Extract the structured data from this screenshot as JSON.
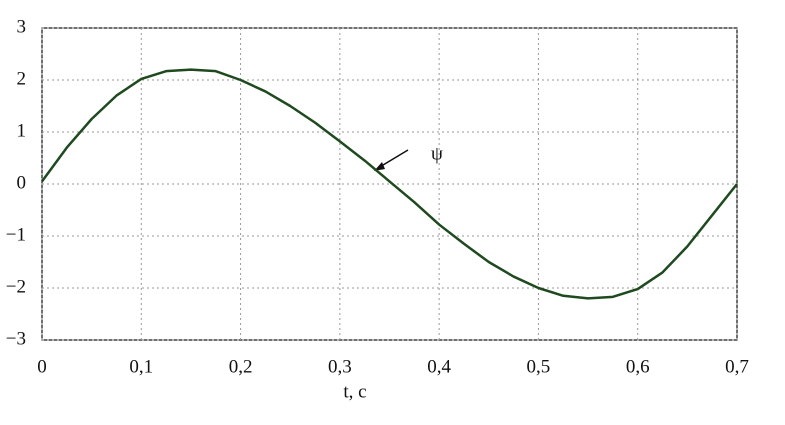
{
  "chart_data": {
    "type": "line",
    "xlabel": "t, с",
    "annotation": "ψ",
    "x": [
      0,
      0.025,
      0.05,
      0.075,
      0.1,
      0.125,
      0.15,
      0.175,
      0.2,
      0.225,
      0.25,
      0.275,
      0.3,
      0.325,
      0.35,
      0.375,
      0.4,
      0.425,
      0.45,
      0.475,
      0.5,
      0.525,
      0.55,
      0.575,
      0.6,
      0.625,
      0.65,
      0.675,
      0.7
    ],
    "values": [
      0.05,
      0.7,
      1.25,
      1.7,
      2.02,
      2.17,
      2.2,
      2.17,
      2.0,
      1.78,
      1.5,
      1.18,
      0.82,
      0.45,
      0.05,
      -0.35,
      -0.78,
      -1.15,
      -1.5,
      -1.78,
      -2.0,
      -2.15,
      -2.2,
      -2.17,
      -2.02,
      -1.7,
      -1.2,
      -0.6,
      0.0
    ],
    "color": "#1f4a1f",
    "xlim": [
      0,
      0.7
    ],
    "xticks": [
      0,
      {
        "value": 0.1,
        "label": "0,1"
      },
      {
        "value": 0.2,
        "label": "0,2"
      },
      {
        "value": 0.3,
        "label": "0,3"
      },
      {
        "value": 0.4,
        "label": "0,4"
      },
      {
        "value": 0.5,
        "label": "0,5"
      },
      {
        "value": 0.6,
        "label": "0,6"
      },
      {
        "value": 0.7,
        "label": "0,7"
      }
    ],
    "ylim": [
      -3,
      3
    ],
    "yticks": [
      {
        "value": -3,
        "label": "−3"
      },
      {
        "value": -2,
        "label": "−2"
      },
      {
        "value": -1,
        "label": "−1"
      },
      0,
      1,
      2,
      3
    ],
    "grid": true
  }
}
